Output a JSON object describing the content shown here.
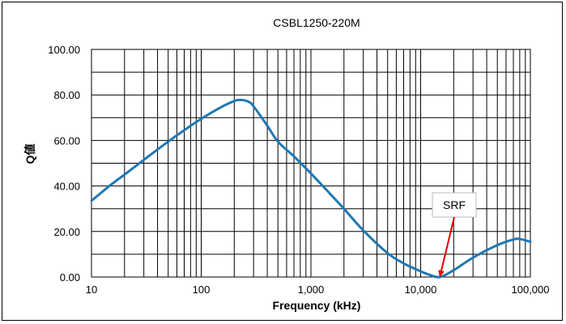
{
  "chart_data": {
    "type": "line",
    "title": "CSBL1250-220M",
    "xlabel": "Frequency (kHz)",
    "ylabel": "Q値",
    "x_scale": "log",
    "xlim": [
      10,
      100000
    ],
    "ylim": [
      0,
      100
    ],
    "grid": true,
    "x_ticks": [
      10,
      100,
      1000,
      10000,
      100000
    ],
    "x_tick_labels": [
      "10",
      "100",
      "1,000",
      "10,000",
      "100,000"
    ],
    "y_ticks": [
      0,
      20,
      40,
      60,
      80,
      100
    ],
    "y_tick_labels": [
      "0.00",
      "20.00",
      "40.00",
      "60.00",
      "80.00",
      "100.00"
    ],
    "series": [
      {
        "color": "#1f77b4",
        "x": [
          10,
          15,
          20,
          30,
          50,
          70,
          100,
          150,
          200,
          230,
          270,
          300,
          400,
          500,
          700,
          1000,
          1500,
          2000,
          3000,
          5000,
          7000,
          10000,
          12000,
          15000,
          20000,
          30000,
          50000,
          70000,
          80000,
          100000
        ],
        "y": [
          33.5,
          40.5,
          45,
          51.5,
          59.5,
          64.5,
          69.5,
          74.5,
          77.3,
          77.8,
          77,
          75,
          66.5,
          59.5,
          53,
          45.5,
          36.5,
          30,
          20.5,
          10.5,
          6,
          2.5,
          1,
          0,
          3,
          8.5,
          14,
          16.5,
          16.7,
          15.5
        ]
      }
    ],
    "annotations": [
      {
        "text": "SRF",
        "x": 15000,
        "y": 0
      }
    ]
  }
}
